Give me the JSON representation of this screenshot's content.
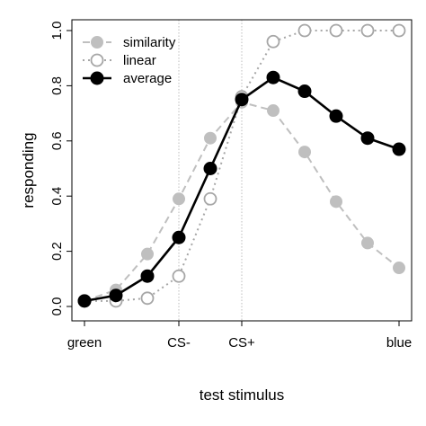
{
  "chart_data": {
    "type": "line",
    "xlabel": "test stimulus",
    "ylabel": "responding",
    "xlim": [
      0,
      10
    ],
    "ylim": [
      0,
      1
    ],
    "x_ticks": [
      {
        "x": 0,
        "label": "green"
      },
      {
        "x": 3,
        "label": "CS-"
      },
      {
        "x": 5,
        "label": "CS+"
      },
      {
        "x": 10,
        "label": "blue"
      }
    ],
    "y_ticks": [
      {
        "v": 0,
        "label": "0.0"
      },
      {
        "v": 0.2,
        "label": "0.2"
      },
      {
        "v": 0.4,
        "label": "0.4"
      },
      {
        "v": 0.6,
        "label": "0.6"
      },
      {
        "v": 0.8,
        "label": "0.8"
      },
      {
        "v": 1.0,
        "label": "1.0"
      }
    ],
    "reference_lines_x": [
      3,
      5
    ],
    "legend_position": "top-left",
    "x": [
      0,
      1,
      2,
      3,
      4,
      5,
      6,
      7,
      8,
      9,
      10
    ],
    "series": [
      {
        "name": "similarity",
        "style": "dashed",
        "marker": "filled-circle",
        "color": "#bfbfbf",
        "values": [
          0.02,
          0.06,
          0.19,
          0.39,
          0.61,
          0.74,
          0.71,
          0.56,
          0.38,
          0.23,
          0.14
        ]
      },
      {
        "name": "linear",
        "style": "dotted",
        "marker": "open-circle",
        "color": "#a6a6a6",
        "values": [
          0.02,
          0.02,
          0.03,
          0.11,
          0.39,
          0.76,
          0.96,
          1.0,
          1.0,
          1.0,
          1.0
        ]
      },
      {
        "name": "average",
        "style": "solid",
        "marker": "filled-circle",
        "color": "#000000",
        "values": [
          0.02,
          0.04,
          0.11,
          0.25,
          0.5,
          0.75,
          0.83,
          0.78,
          0.69,
          0.61,
          0.57
        ]
      }
    ]
  }
}
